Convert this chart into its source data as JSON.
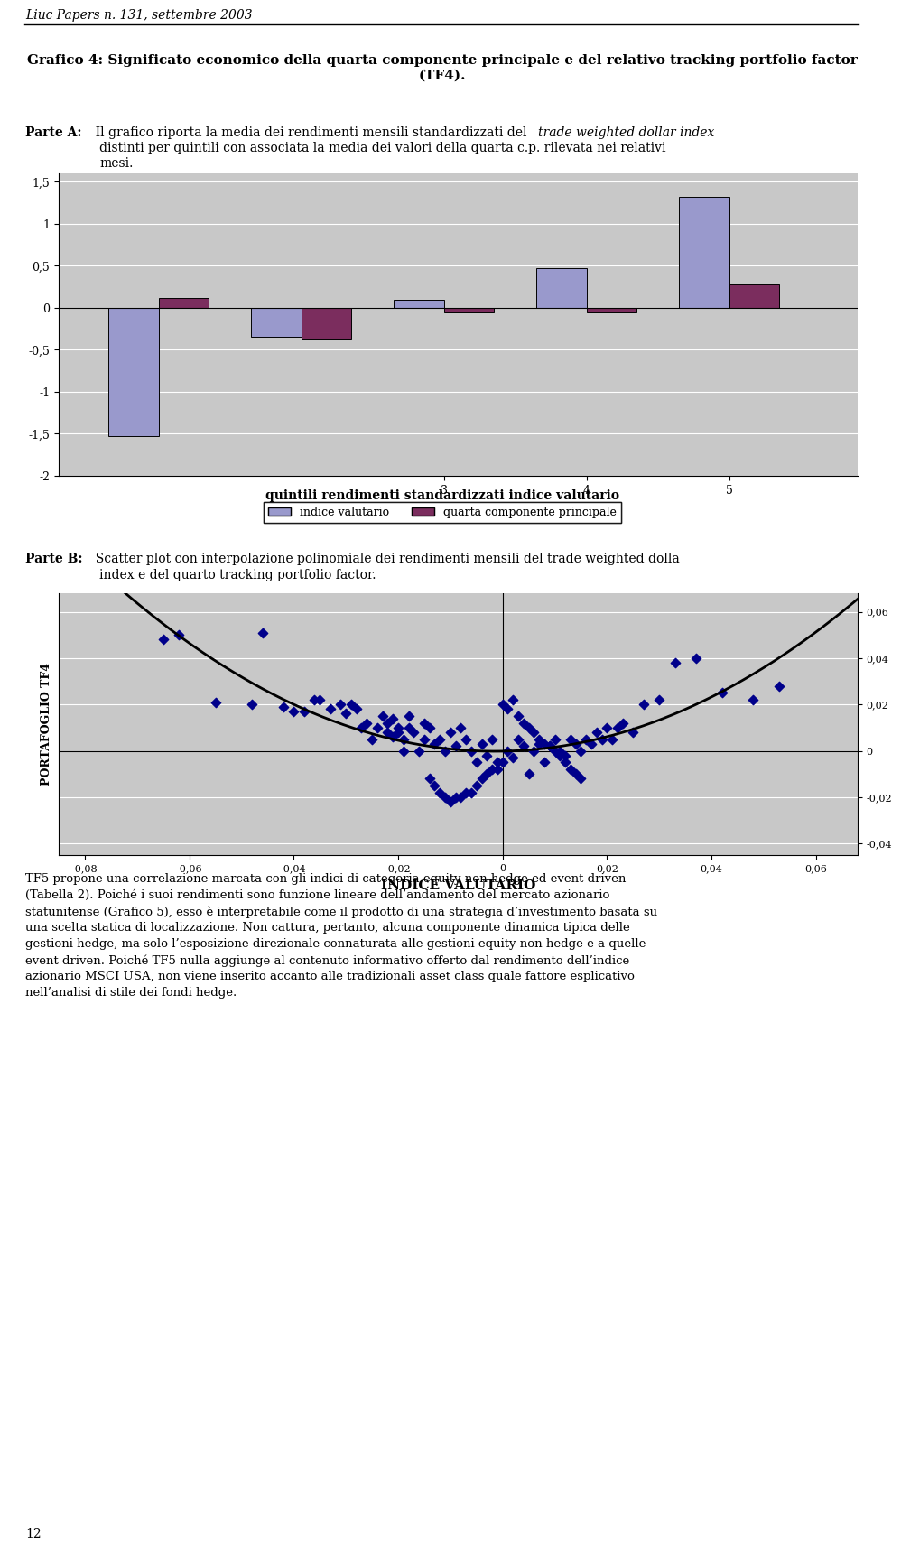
{
  "title_line1": "Grafico 4: Significato economico della quarta componente principale e del relativo tracking portfolio factor",
  "title_line2": "(TF4).",
  "header": "Liuc Papers n. 131, settembre 2003",
  "bar_indice": [
    -1.53,
    -0.35,
    0.1,
    0.47,
    1.32
  ],
  "bar_quarta": [
    0.12,
    -0.38,
    -0.06,
    -0.05,
    0.28
  ],
  "bar_color_indice": "#9999CC",
  "bar_color_quarta": "#7B2D5E",
  "ylim_bar": [
    -2.0,
    1.6
  ],
  "yticks_bar": [
    -2.0,
    -1.5,
    -1.0,
    -0.5,
    0.0,
    0.5,
    1.0,
    1.5
  ],
  "ytick_labels_bar": [
    "-2",
    "-1,5",
    "-1",
    "-0,5",
    "0",
    "0,5",
    "1",
    "1,5"
  ],
  "xlabel_bar": "quintili rendimenti standardizzati indice valutario",
  "legend_indice": "indice valutario",
  "legend_quarta": "quarta componente principale",
  "scatter_xlabel": "INDICE VALUTARIO",
  "scatter_ylabel": "PORTAFOGLIO TF4",
  "scatter_color": "#00008B",
  "scatter_xlim": [
    -0.085,
    0.068
  ],
  "scatter_ylim": [
    -0.045,
    0.068
  ],
  "scatter_xticks": [
    -0.08,
    -0.06,
    -0.04,
    -0.02,
    0.0,
    0.02,
    0.04,
    0.06
  ],
  "scatter_xtick_labels": [
    "-0,08",
    "-0,06",
    "-0,04",
    "-0,02",
    "0",
    "0,02",
    "0,04",
    "0,06"
  ],
  "scatter_yticks": [
    -0.04,
    -0.02,
    0.0,
    0.02,
    0.04,
    0.06
  ],
  "scatter_ytick_labels": [
    "-0,04",
    "-0,02",
    "0",
    "0,02",
    "0,04",
    "0,06"
  ],
  "scatter_x": [
    -0.065,
    -0.062,
    -0.055,
    -0.048,
    -0.046,
    -0.042,
    -0.04,
    -0.038,
    -0.036,
    -0.035,
    -0.033,
    -0.031,
    -0.03,
    -0.029,
    -0.028,
    -0.027,
    -0.026,
    -0.025,
    -0.024,
    -0.023,
    -0.022,
    -0.022,
    -0.021,
    -0.021,
    -0.02,
    -0.02,
    -0.019,
    -0.019,
    -0.018,
    -0.018,
    -0.017,
    -0.016,
    -0.015,
    -0.015,
    -0.014,
    -0.013,
    -0.012,
    -0.011,
    -0.01,
    -0.009,
    -0.008,
    -0.007,
    -0.006,
    -0.005,
    -0.004,
    -0.003,
    -0.002,
    -0.001,
    0.0,
    0.001,
    0.002,
    0.003,
    0.004,
    0.005,
    0.006,
    0.007,
    0.008,
    0.009,
    0.01,
    0.011,
    0.012,
    0.013,
    0.014,
    0.015,
    0.016,
    0.017,
    0.018,
    0.019,
    0.02,
    0.021,
    0.022,
    0.023,
    0.025,
    0.027,
    0.03,
    0.033,
    0.037,
    0.042,
    0.048,
    0.053,
    0.0,
    0.001,
    -0.001,
    0.002,
    -0.002,
    0.003,
    -0.003,
    0.004,
    -0.004,
    0.005,
    -0.005,
    0.006,
    -0.006,
    0.007,
    -0.007,
    0.008,
    -0.008,
    0.009,
    -0.009,
    0.01,
    -0.01,
    0.011,
    -0.011,
    0.012,
    -0.012,
    0.013,
    -0.013,
    0.014,
    -0.014,
    0.015
  ],
  "scatter_y": [
    0.048,
    0.05,
    0.021,
    0.02,
    0.051,
    0.019,
    0.017,
    0.017,
    0.022,
    0.022,
    0.018,
    0.02,
    0.016,
    0.02,
    0.018,
    0.01,
    0.012,
    0.005,
    0.01,
    0.015,
    0.008,
    0.012,
    0.014,
    0.006,
    0.01,
    0.008,
    0.0,
    0.005,
    0.015,
    0.01,
    0.008,
    0.0,
    0.012,
    0.005,
    0.01,
    0.003,
    0.005,
    0.0,
    0.008,
    0.002,
    0.01,
    0.005,
    0.0,
    -0.005,
    0.003,
    -0.002,
    0.005,
    -0.008,
    -0.005,
    0.0,
    -0.003,
    0.005,
    0.002,
    -0.01,
    0.0,
    0.003,
    -0.005,
    0.002,
    0.005,
    0.0,
    -0.002,
    0.005,
    0.003,
    0.0,
    0.005,
    0.003,
    0.008,
    0.005,
    0.01,
    0.005,
    0.01,
    0.012,
    0.008,
    0.02,
    0.022,
    0.038,
    0.04,
    0.025,
    0.022,
    0.028,
    0.02,
    0.018,
    -0.005,
    0.022,
    -0.008,
    0.015,
    -0.01,
    0.012,
    -0.012,
    0.01,
    -0.015,
    0.008,
    -0.018,
    0.005,
    -0.018,
    0.003,
    -0.02,
    0.002,
    -0.02,
    0.0,
    -0.022,
    -0.002,
    -0.02,
    -0.005,
    -0.018,
    -0.008,
    -0.015,
    -0.01,
    -0.012,
    -0.012
  ],
  "poly_degree": 2,
  "bg_color": "#C8C8C8",
  "page_number": "12",
  "footer_text": "TF5 propone una correlazione marcata con gli indici di categoria equity non hedge ed event driven\n(Tabella 2). Poiché i suoi rendimenti sono funzione lineare dell’andamento del mercato azionario\nstatunitense (Grafico 5), esso è interpretabile come il prodotto di una strategia d’investimento basata su\nuna scelta statica di localizzazione. Non cattura, pertanto, alcuna componente dinamica tipica delle\ngestioni hedge, ma solo l’esposizione direzionale connaturata alle gestioni equity non hedge e a quelle\nevent driven. Poiché TF5 nulla aggiunge al contenuto informativo offerto dal rendimento dell’indice\nazionario MSCI USA, non viene inserito accanto alle tradizionali asset class quale fattore esplicativo\nnell’analisi di stile dei fondi hedge."
}
